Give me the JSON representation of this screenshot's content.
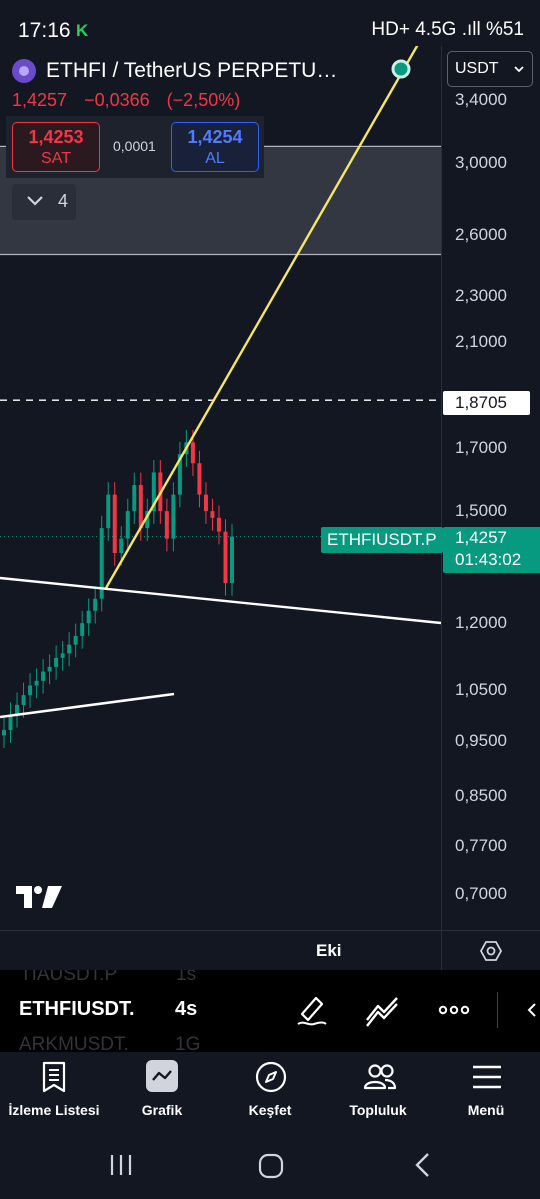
{
  "status": {
    "time": "17:16",
    "app_glyph": "K",
    "right_text": "HD+ 4.5G .ıll %51"
  },
  "symbol": {
    "title": "ETHFI / TetherUS PERPETU…",
    "last": "1,4257",
    "change": "−0,0366",
    "change_pct": "(−2,50%)",
    "logo_icon": "ethfi-coin-icon"
  },
  "trade": {
    "sell_price": "1,4253",
    "sell_label": "SAT",
    "spread": "0,0001",
    "buy_price": "1,4254",
    "buy_label": "AL"
  },
  "indicators_toggle": {
    "count": "4"
  },
  "currency": {
    "label": "USDT"
  },
  "price_axis": {
    "ticks": [
      "3,4000",
      "3,0000",
      "2,6000",
      "2,3000",
      "2,1000",
      "1,7000",
      "1,5000",
      "1,2000",
      "1,0500",
      "0,9500",
      "0,8500",
      "0,7700",
      "0,7000"
    ],
    "hover_price": "1,8705",
    "last_price": "1,4257",
    "countdown": "01:43:02",
    "symbol_tag": "ETHFIUSDT.P"
  },
  "chart_data": {
    "type": "candlestick",
    "symbol": "ETHFIUSDT.P",
    "y_scale": "log",
    "y_ticks": [
      3.4,
      3.0,
      2.6,
      2.3,
      2.1,
      1.7,
      1.5,
      1.2,
      1.05,
      0.95,
      0.85,
      0.77,
      0.7
    ],
    "last_price": 1.4257,
    "horizontal_line": 1.8705,
    "closes": [
      0.97,
      1.0,
      1.02,
      1.04,
      1.06,
      1.07,
      1.09,
      1.1,
      1.12,
      1.13,
      1.15,
      1.17,
      1.2,
      1.23,
      1.26,
      1.45,
      1.55,
      1.38,
      1.42,
      1.5,
      1.58,
      1.45,
      1.5,
      1.62,
      1.5,
      1.42,
      1.55,
      1.68,
      1.72,
      1.65,
      1.55,
      1.5,
      1.48,
      1.44,
      1.3,
      1.4257
    ],
    "shaded_zone": [
      2.5,
      3.1
    ],
    "trendlines": [
      "rising-yellow",
      "resistance-white",
      "support-white"
    ]
  },
  "tools": {
    "object_tree_label": "Eki"
  },
  "watchlist": {
    "prev": {
      "symbol": "TIAUSDT.P",
      "interval": "1s"
    },
    "current": {
      "symbol": "ETHFIUSDT.",
      "interval": "4s"
    },
    "next": {
      "symbol": "ARKMUSDT.",
      "interval": "1G"
    }
  },
  "nav": [
    {
      "label": "İzleme Listesi",
      "icon": "watchlist-icon"
    },
    {
      "label": "Grafik",
      "icon": "chart-icon"
    },
    {
      "label": "Keşfet",
      "icon": "compass-icon"
    },
    {
      "label": "Topluluk",
      "icon": "community-icon"
    },
    {
      "label": "Menü",
      "icon": "menu-icon"
    }
  ]
}
